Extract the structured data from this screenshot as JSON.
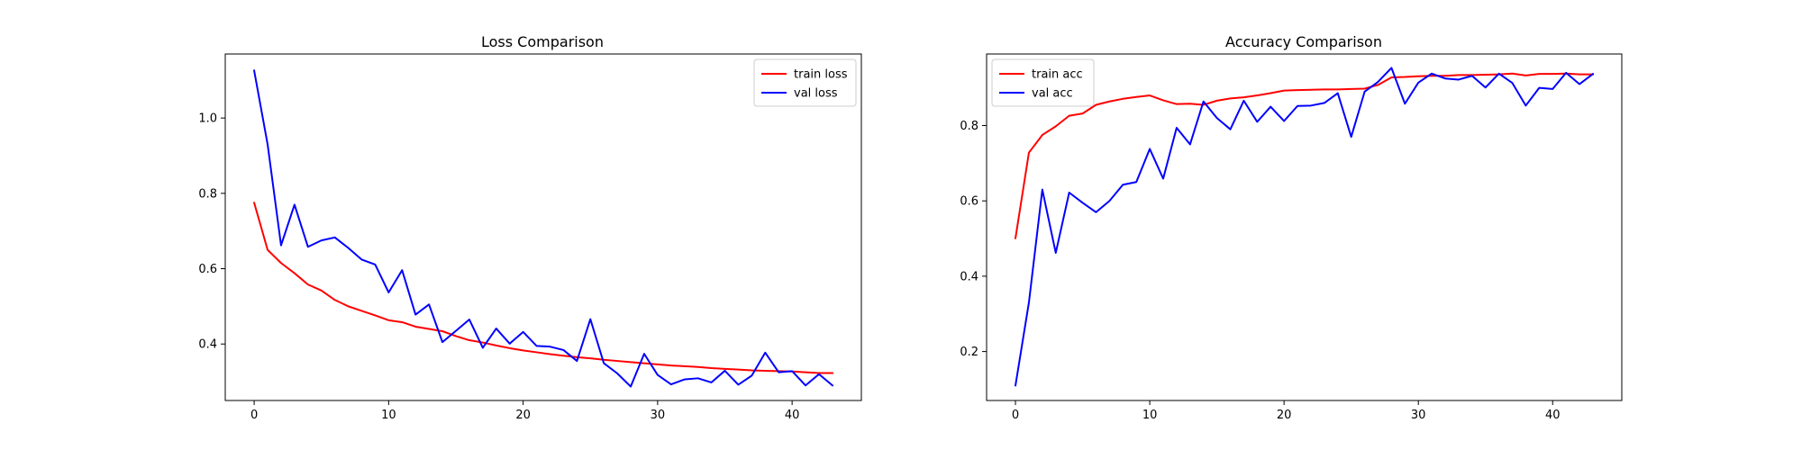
{
  "chart_data": [
    {
      "type": "line",
      "title": "Loss Comparison",
      "xlabel": "",
      "ylabel": "",
      "xlim": [
        -2.15,
        45.15
      ],
      "ylim": [
        0.25,
        1.17
      ],
      "x_ticks": [
        0,
        10,
        20,
        30,
        40
      ],
      "y_ticks": [
        0.4,
        0.6,
        0.8,
        1.0
      ],
      "y_tick_format": 1,
      "grid": false,
      "legend_position": "top-right",
      "x": [
        0,
        1,
        2,
        3,
        4,
        5,
        6,
        7,
        8,
        9,
        10,
        11,
        12,
        13,
        14,
        15,
        16,
        17,
        18,
        19,
        20,
        21,
        22,
        23,
        24,
        25,
        26,
        27,
        28,
        29,
        30,
        31,
        32,
        33,
        34,
        35,
        36,
        37,
        38,
        39,
        40,
        41,
        42,
        43
      ],
      "series": [
        {
          "name": "train loss",
          "color": "#ff0000",
          "values": [
            0.775,
            0.65,
            0.615,
            0.588,
            0.558,
            0.542,
            0.517,
            0.5,
            0.488,
            0.476,
            0.463,
            0.458,
            0.446,
            0.44,
            0.434,
            0.421,
            0.41,
            0.404,
            0.396,
            0.389,
            0.383,
            0.378,
            0.373,
            0.369,
            0.365,
            0.362,
            0.358,
            0.355,
            0.352,
            0.349,
            0.346,
            0.343,
            0.341,
            0.339,
            0.336,
            0.334,
            0.332,
            0.33,
            0.329,
            0.328,
            0.327,
            0.325,
            0.323,
            0.323
          ]
        },
        {
          "name": "val loss",
          "color": "#0000ff",
          "values": [
            1.126,
            0.93,
            0.662,
            0.77,
            0.658,
            0.675,
            0.683,
            0.655,
            0.624,
            0.611,
            0.537,
            0.596,
            0.478,
            0.505,
            0.405,
            0.435,
            0.465,
            0.39,
            0.441,
            0.401,
            0.432,
            0.395,
            0.393,
            0.384,
            0.355,
            0.466,
            0.349,
            0.322,
            0.287,
            0.374,
            0.318,
            0.293,
            0.306,
            0.309,
            0.298,
            0.329,
            0.292,
            0.316,
            0.377,
            0.325,
            0.328,
            0.29,
            0.32,
            0.29
          ]
        }
      ]
    },
    {
      "type": "line",
      "title": "Accuracy Comparison",
      "xlabel": "",
      "ylabel": "",
      "xlim": [
        -2.15,
        45.15
      ],
      "ylim": [
        0.07,
        0.99
      ],
      "x_ticks": [
        0,
        10,
        20,
        30,
        40
      ],
      "y_ticks": [
        0.2,
        0.4,
        0.6,
        0.8
      ],
      "y_tick_format": 1,
      "grid": false,
      "legend_position": "top-left",
      "x": [
        0,
        1,
        2,
        3,
        4,
        5,
        6,
        7,
        8,
        9,
        10,
        11,
        12,
        13,
        14,
        15,
        16,
        17,
        18,
        19,
        20,
        21,
        22,
        23,
        24,
        25,
        26,
        27,
        28,
        29,
        30,
        31,
        32,
        33,
        34,
        35,
        36,
        37,
        38,
        39,
        40,
        41,
        42,
        43
      ],
      "series": [
        {
          "name": "train acc",
          "color": "#ff0000",
          "values": [
            0.501,
            0.728,
            0.775,
            0.798,
            0.826,
            0.832,
            0.855,
            0.864,
            0.871,
            0.876,
            0.88,
            0.867,
            0.857,
            0.858,
            0.855,
            0.866,
            0.872,
            0.875,
            0.88,
            0.886,
            0.893,
            0.894,
            0.895,
            0.896,
            0.896,
            0.897,
            0.898,
            0.908,
            0.928,
            0.929,
            0.931,
            0.932,
            0.932,
            0.934,
            0.934,
            0.935,
            0.936,
            0.938,
            0.933,
            0.937,
            0.937,
            0.938,
            0.936,
            0.936
          ]
        },
        {
          "name": "val acc",
          "color": "#0000ff",
          "values": [
            0.11,
            0.33,
            0.63,
            0.462,
            0.622,
            0.595,
            0.57,
            0.6,
            0.643,
            0.65,
            0.738,
            0.659,
            0.794,
            0.75,
            0.864,
            0.82,
            0.79,
            0.866,
            0.81,
            0.85,
            0.812,
            0.852,
            0.853,
            0.86,
            0.886,
            0.77,
            0.89,
            0.916,
            0.953,
            0.858,
            0.914,
            0.938,
            0.925,
            0.922,
            0.932,
            0.901,
            0.938,
            0.913,
            0.853,
            0.9,
            0.897,
            0.94,
            0.91,
            0.937
          ]
        }
      ]
    }
  ]
}
